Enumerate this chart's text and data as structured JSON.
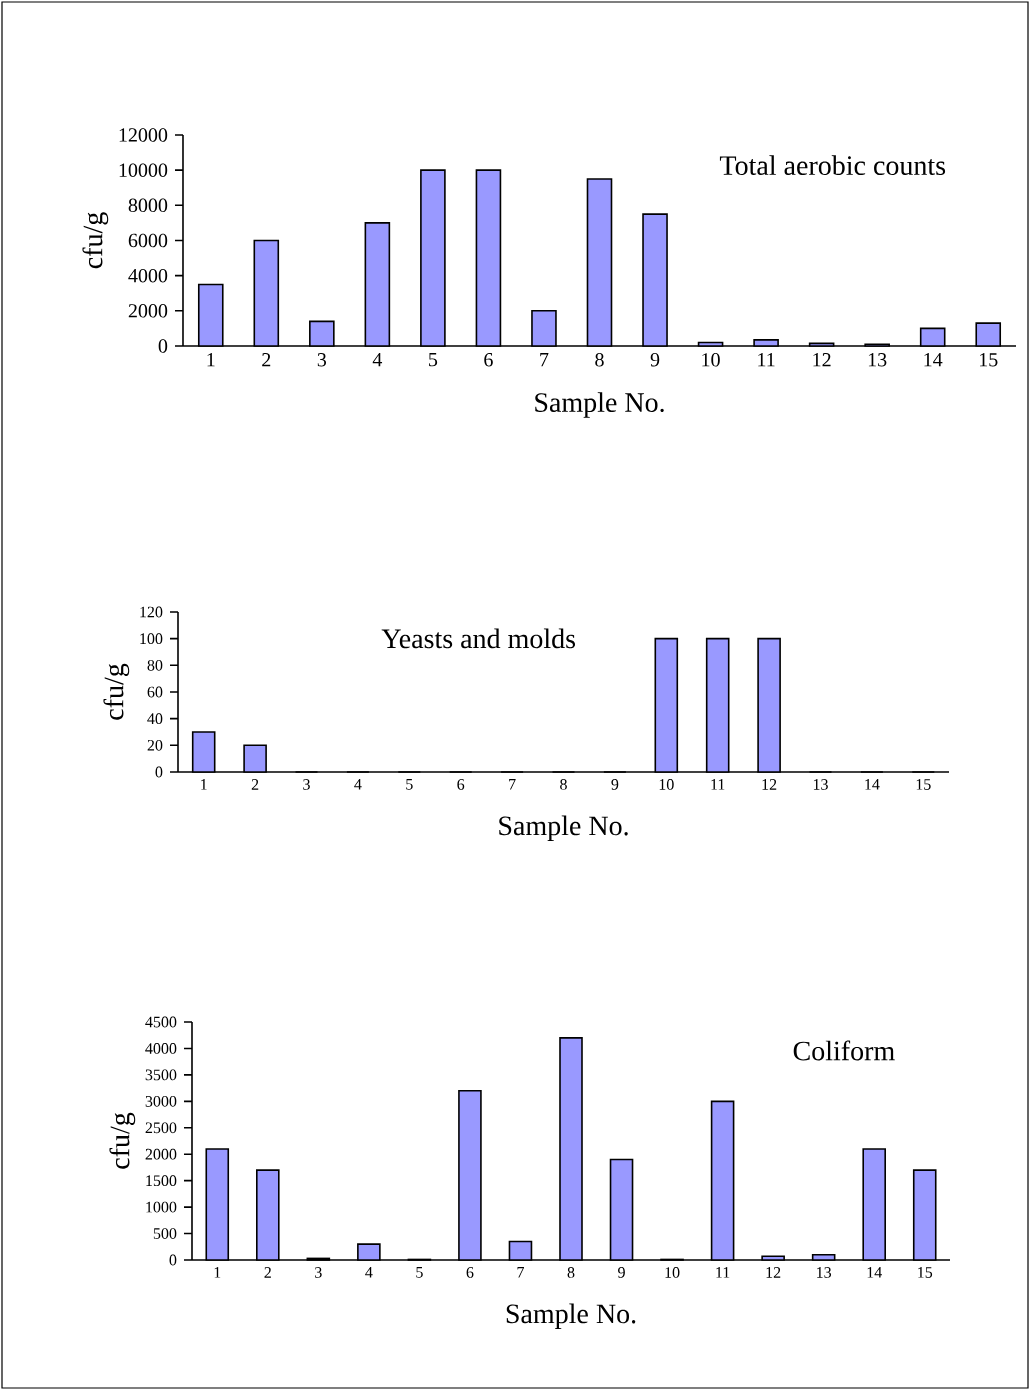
{
  "chart_data": [
    {
      "type": "bar",
      "title": "Total aerobic counts",
      "xlabel": "Sample No.",
      "ylabel": "cfu/g",
      "color": "#9999ff",
      "categories": [
        "1",
        "2",
        "3",
        "4",
        "5",
        "6",
        "7",
        "8",
        "9",
        "10",
        "11",
        "12",
        "13",
        "14",
        "15"
      ],
      "values": [
        3500,
        6000,
        1400,
        7000,
        10000,
        10000,
        2000,
        9500,
        7500,
        200,
        350,
        150,
        100,
        1000,
        1300
      ],
      "ylim": [
        0,
        12000
      ],
      "yticks": [
        0,
        2000,
        4000,
        6000,
        8000,
        10000,
        12000
      ]
    },
    {
      "type": "bar",
      "title": "Yeasts and molds",
      "xlabel": "Sample No.",
      "ylabel": "cfu/g",
      "color": "#9999ff",
      "categories": [
        "1",
        "2",
        "3",
        "4",
        "5",
        "6",
        "7",
        "8",
        "9",
        "10",
        "11",
        "12",
        "13",
        "14",
        "15"
      ],
      "values": [
        30,
        20,
        0,
        0,
        0,
        0,
        0,
        0,
        0,
        100,
        100,
        100,
        0,
        0,
        0
      ],
      "ylim": [
        0,
        120
      ],
      "yticks": [
        0,
        20,
        40,
        60,
        80,
        100,
        120
      ]
    },
    {
      "type": "bar",
      "title": "Coliform",
      "xlabel": "Sample No.",
      "ylabel": "cfu/g",
      "color": "#9999ff",
      "categories": [
        "1",
        "2",
        "3",
        "4",
        "5",
        "6",
        "7",
        "8",
        "9",
        "10",
        "11",
        "12",
        "13",
        "14",
        "15"
      ],
      "values": [
        2100,
        1700,
        30,
        300,
        10,
        3200,
        350,
        4200,
        1900,
        10,
        3000,
        70,
        100,
        2100,
        1700
      ],
      "ylim": [
        0,
        4500
      ],
      "yticks": [
        0,
        500,
        1000,
        1500,
        2000,
        2500,
        3000,
        3500,
        4000,
        4500
      ]
    }
  ]
}
